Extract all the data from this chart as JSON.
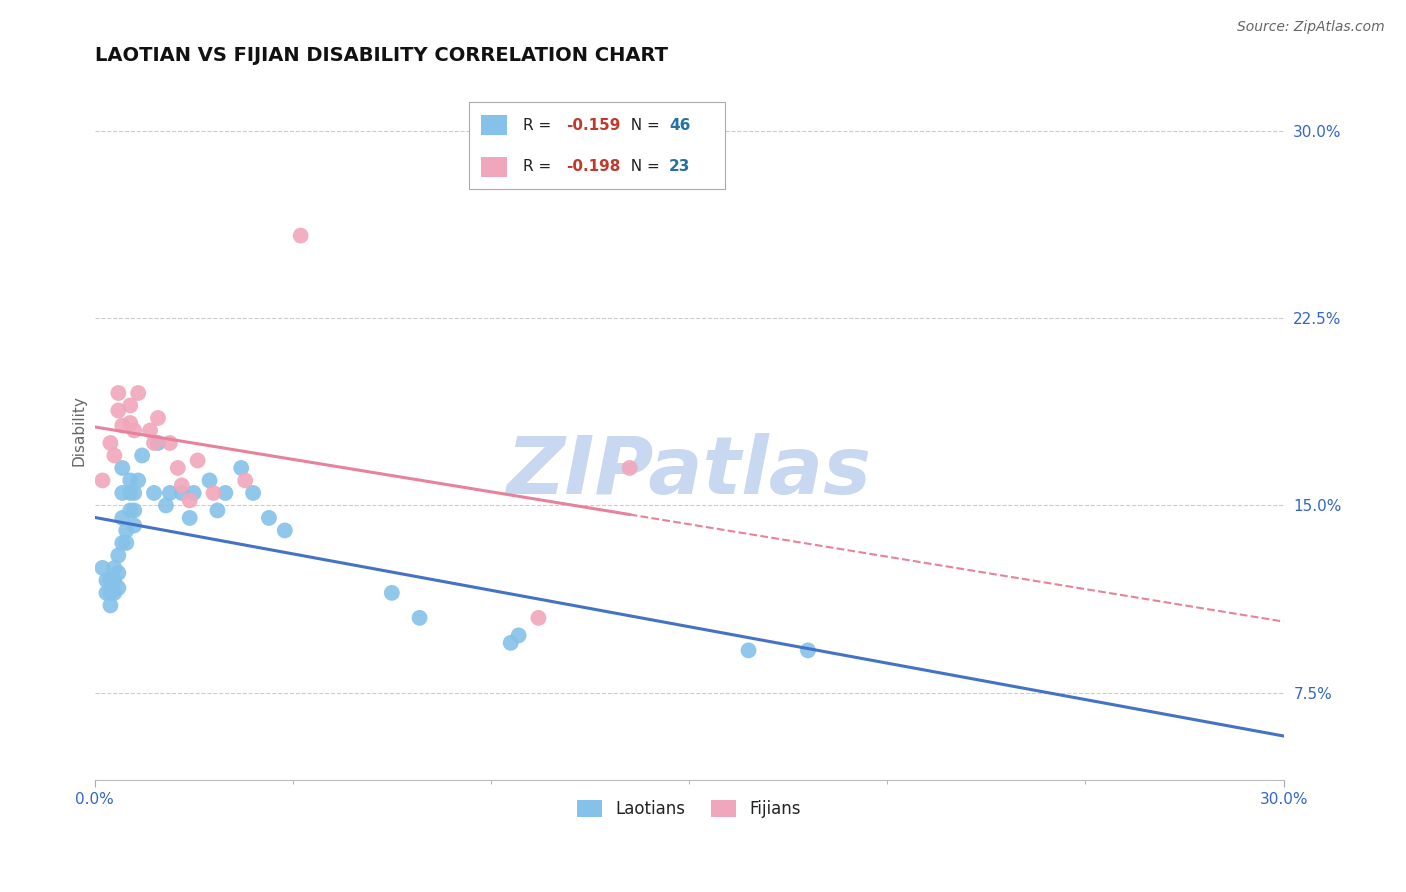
{
  "title": "LAOTIAN VS FIJIAN DISABILITY CORRELATION CHART",
  "source": "Source: ZipAtlas.com",
  "ylabel": "Disability",
  "xlim": [
    0.0,
    0.3
  ],
  "ylim": [
    0.04,
    0.32
  ],
  "ytick_vals": [
    0.075,
    0.15,
    0.225,
    0.3
  ],
  "ytick_labels": [
    "7.5%",
    "15.0%",
    "22.5%",
    "30.0%"
  ],
  "xtick_vals": [
    0.0,
    0.3
  ],
  "xtick_labels": [
    "0.0%",
    "30.0%"
  ],
  "grid_color": "#cccccc",
  "background_color": "#ffffff",
  "laotian_color": "#85C1E8",
  "fijian_color": "#F1A7BB",
  "laotian_line_color": "#4472C4",
  "fijian_line_color": "#E8829A",
  "laotian_R": "-0.159",
  "laotian_N": "46",
  "fijian_R": "-0.198",
  "fijian_N": "23",
  "R_color": "#C0392B",
  "N_color": "#2471A3",
  "laotian_x": [
    0.002,
    0.003,
    0.003,
    0.004,
    0.004,
    0.004,
    0.005,
    0.005,
    0.005,
    0.006,
    0.006,
    0.006,
    0.007,
    0.007,
    0.007,
    0.007,
    0.008,
    0.008,
    0.009,
    0.009,
    0.009,
    0.01,
    0.01,
    0.01,
    0.011,
    0.012,
    0.015,
    0.016,
    0.018,
    0.019,
    0.022,
    0.024,
    0.025,
    0.029,
    0.031,
    0.033,
    0.037,
    0.04,
    0.044,
    0.048,
    0.075,
    0.082,
    0.105,
    0.107,
    0.165,
    0.18
  ],
  "laotian_y": [
    0.125,
    0.12,
    0.115,
    0.12,
    0.115,
    0.11,
    0.125,
    0.12,
    0.115,
    0.13,
    0.123,
    0.117,
    0.165,
    0.155,
    0.145,
    0.135,
    0.14,
    0.135,
    0.16,
    0.155,
    0.148,
    0.155,
    0.148,
    0.142,
    0.16,
    0.17,
    0.155,
    0.175,
    0.15,
    0.155,
    0.155,
    0.145,
    0.155,
    0.16,
    0.148,
    0.155,
    0.165,
    0.155,
    0.145,
    0.14,
    0.115,
    0.105,
    0.095,
    0.098,
    0.092,
    0.092
  ],
  "fijian_x": [
    0.002,
    0.004,
    0.005,
    0.006,
    0.006,
    0.007,
    0.009,
    0.009,
    0.01,
    0.011,
    0.014,
    0.015,
    0.016,
    0.019,
    0.021,
    0.022,
    0.024,
    0.026,
    0.03,
    0.038,
    0.052,
    0.112,
    0.135
  ],
  "fijian_y": [
    0.16,
    0.175,
    0.17,
    0.195,
    0.188,
    0.182,
    0.19,
    0.183,
    0.18,
    0.195,
    0.18,
    0.175,
    0.185,
    0.175,
    0.165,
    0.158,
    0.152,
    0.168,
    0.155,
    0.16,
    0.258,
    0.105,
    0.165
  ],
  "watermark_text": "ZIPatlas",
  "watermark_color": "#C8D8F0",
  "title_fontsize": 14,
  "tick_fontsize": 11,
  "ylabel_fontsize": 11,
  "legend_fontsize": 11,
  "source_fontsize": 10
}
